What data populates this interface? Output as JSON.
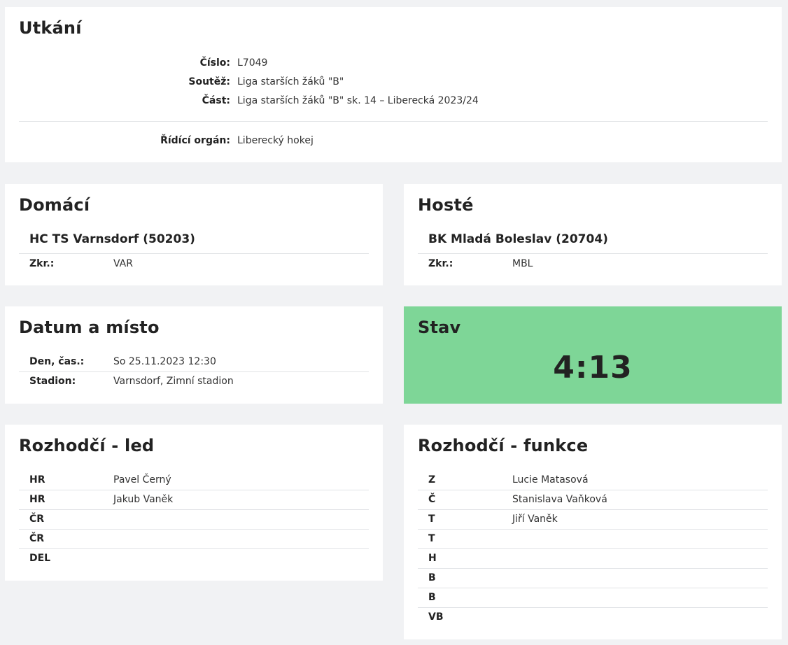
{
  "match": {
    "title": "Utkání",
    "fields": [
      {
        "label": "Číslo:",
        "value": "L7049"
      },
      {
        "label": "Soutěž:",
        "value": "Liga starších žáků \"B\""
      },
      {
        "label": "Část:",
        "value": "Liga starších žáků \"B\" sk. 14 – Liberecká 2023/24"
      }
    ],
    "authority": {
      "label": "Řídící orgán:",
      "value": "Liberecký hokej"
    }
  },
  "home": {
    "title": "Domácí",
    "team": "HC TS Varnsdorf (50203)",
    "abbr_label": "Zkr.:",
    "abbr": "VAR"
  },
  "away": {
    "title": "Hosté",
    "team": "BK Mladá Boleslav (20704)",
    "abbr_label": "Zkr.:",
    "abbr": "MBL"
  },
  "date_place": {
    "title": "Datum a místo",
    "rows": [
      {
        "label": "Den, čas.:",
        "value": "So 25.11.2023 12:30"
      },
      {
        "label": "Stadion:",
        "value": "Varnsdorf, Zimní stadion"
      }
    ]
  },
  "state": {
    "title": "Stav",
    "score": "4:13",
    "color": "#7ed697"
  },
  "ref_ice": {
    "title": "Rozhodčí - led",
    "rows": [
      {
        "label": "HR",
        "value": "Pavel Černý"
      },
      {
        "label": "HR",
        "value": "Jakub Vaněk"
      },
      {
        "label": "ČR",
        "value": ""
      },
      {
        "label": "ČR",
        "value": ""
      },
      {
        "label": "DEL",
        "value": ""
      }
    ]
  },
  "ref_func": {
    "title": "Rozhodčí - funkce",
    "rows": [
      {
        "label": "Z",
        "value": "Lucie Matasová"
      },
      {
        "label": "Č",
        "value": "Stanislava Vaňková"
      },
      {
        "label": "T",
        "value": "Jiří Vaněk"
      },
      {
        "label": "T",
        "value": ""
      },
      {
        "label": "H",
        "value": ""
      },
      {
        "label": "B",
        "value": ""
      },
      {
        "label": "B",
        "value": ""
      },
      {
        "label": "VB",
        "value": ""
      }
    ]
  }
}
